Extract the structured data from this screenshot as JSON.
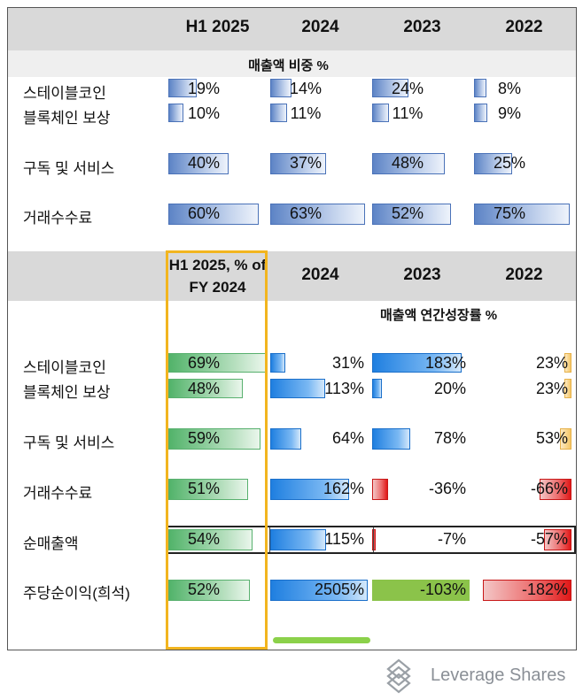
{
  "chart_data": {
    "type": "table",
    "top_table": {
      "columns": [
        "H1 2025",
        "2024",
        "2023",
        "2022"
      ],
      "section_title": "매출액 비중 %",
      "rows": [
        {
          "label": "스테이블코인",
          "values": [
            "19%",
            "14%",
            "24%",
            "8%"
          ],
          "numbers": [
            19,
            14,
            24,
            8
          ]
        },
        {
          "label": "블록체인 보상",
          "values": [
            "10%",
            "11%",
            "11%",
            "9%"
          ],
          "numbers": [
            10,
            11,
            11,
            9
          ]
        },
        {
          "label": "구독 및 서비스",
          "values": [
            "40%",
            "37%",
            "48%",
            "25%"
          ],
          "numbers": [
            40,
            37,
            48,
            25
          ]
        },
        {
          "label": "거래수수료",
          "values": [
            "60%",
            "63%",
            "52%",
            "75%"
          ],
          "numbers": [
            60,
            63,
            52,
            75
          ]
        }
      ]
    },
    "bottom_table": {
      "columns": [
        "H1 2025, % of FY 2024",
        "2024",
        "2023",
        "2022"
      ],
      "section_title": "매출액 연간성장률 %",
      "rows": [
        {
          "label": "스테이블코인",
          "values": [
            "69%",
            "31%",
            "183%",
            "23%"
          ],
          "numbers": [
            69,
            31,
            183,
            23
          ]
        },
        {
          "label": "블록체인 보상",
          "values": [
            "48%",
            "113%",
            "20%",
            "23%"
          ],
          "numbers": [
            48,
            113,
            20,
            23
          ]
        },
        {
          "label": "구독 및 서비스",
          "values": [
            "59%",
            "64%",
            "78%",
            "53%"
          ],
          "numbers": [
            59,
            64,
            78,
            53
          ]
        },
        {
          "label": "거래수수료",
          "values": [
            "51%",
            "162%",
            "-36%",
            "-66%"
          ],
          "numbers": [
            51,
            162,
            -36,
            -66
          ]
        },
        {
          "label": "순매출액",
          "values": [
            "54%",
            "115%",
            "-7%",
            "-57%"
          ],
          "numbers": [
            54,
            115,
            -7,
            -57
          ]
        },
        {
          "label": "주당순이익(희석)",
          "values": [
            "52%",
            "2505%",
            "-103%",
            "-182%"
          ],
          "numbers": [
            52,
            2505,
            -103,
            -182
          ]
        }
      ]
    }
  },
  "colors": {
    "header_band": "#d9d9d9",
    "highlight_border": "#f2b51f",
    "share_bar": "#5d84c6",
    "h1_bar": "#52b36a",
    "growth_bar": "#1f7fe0",
    "negative_bar": "#e01818",
    "small_positive_bar": "#f6c766"
  },
  "brand": {
    "name": "Leverage Shares",
    "icon": "leverage-shares-logo-icon"
  }
}
